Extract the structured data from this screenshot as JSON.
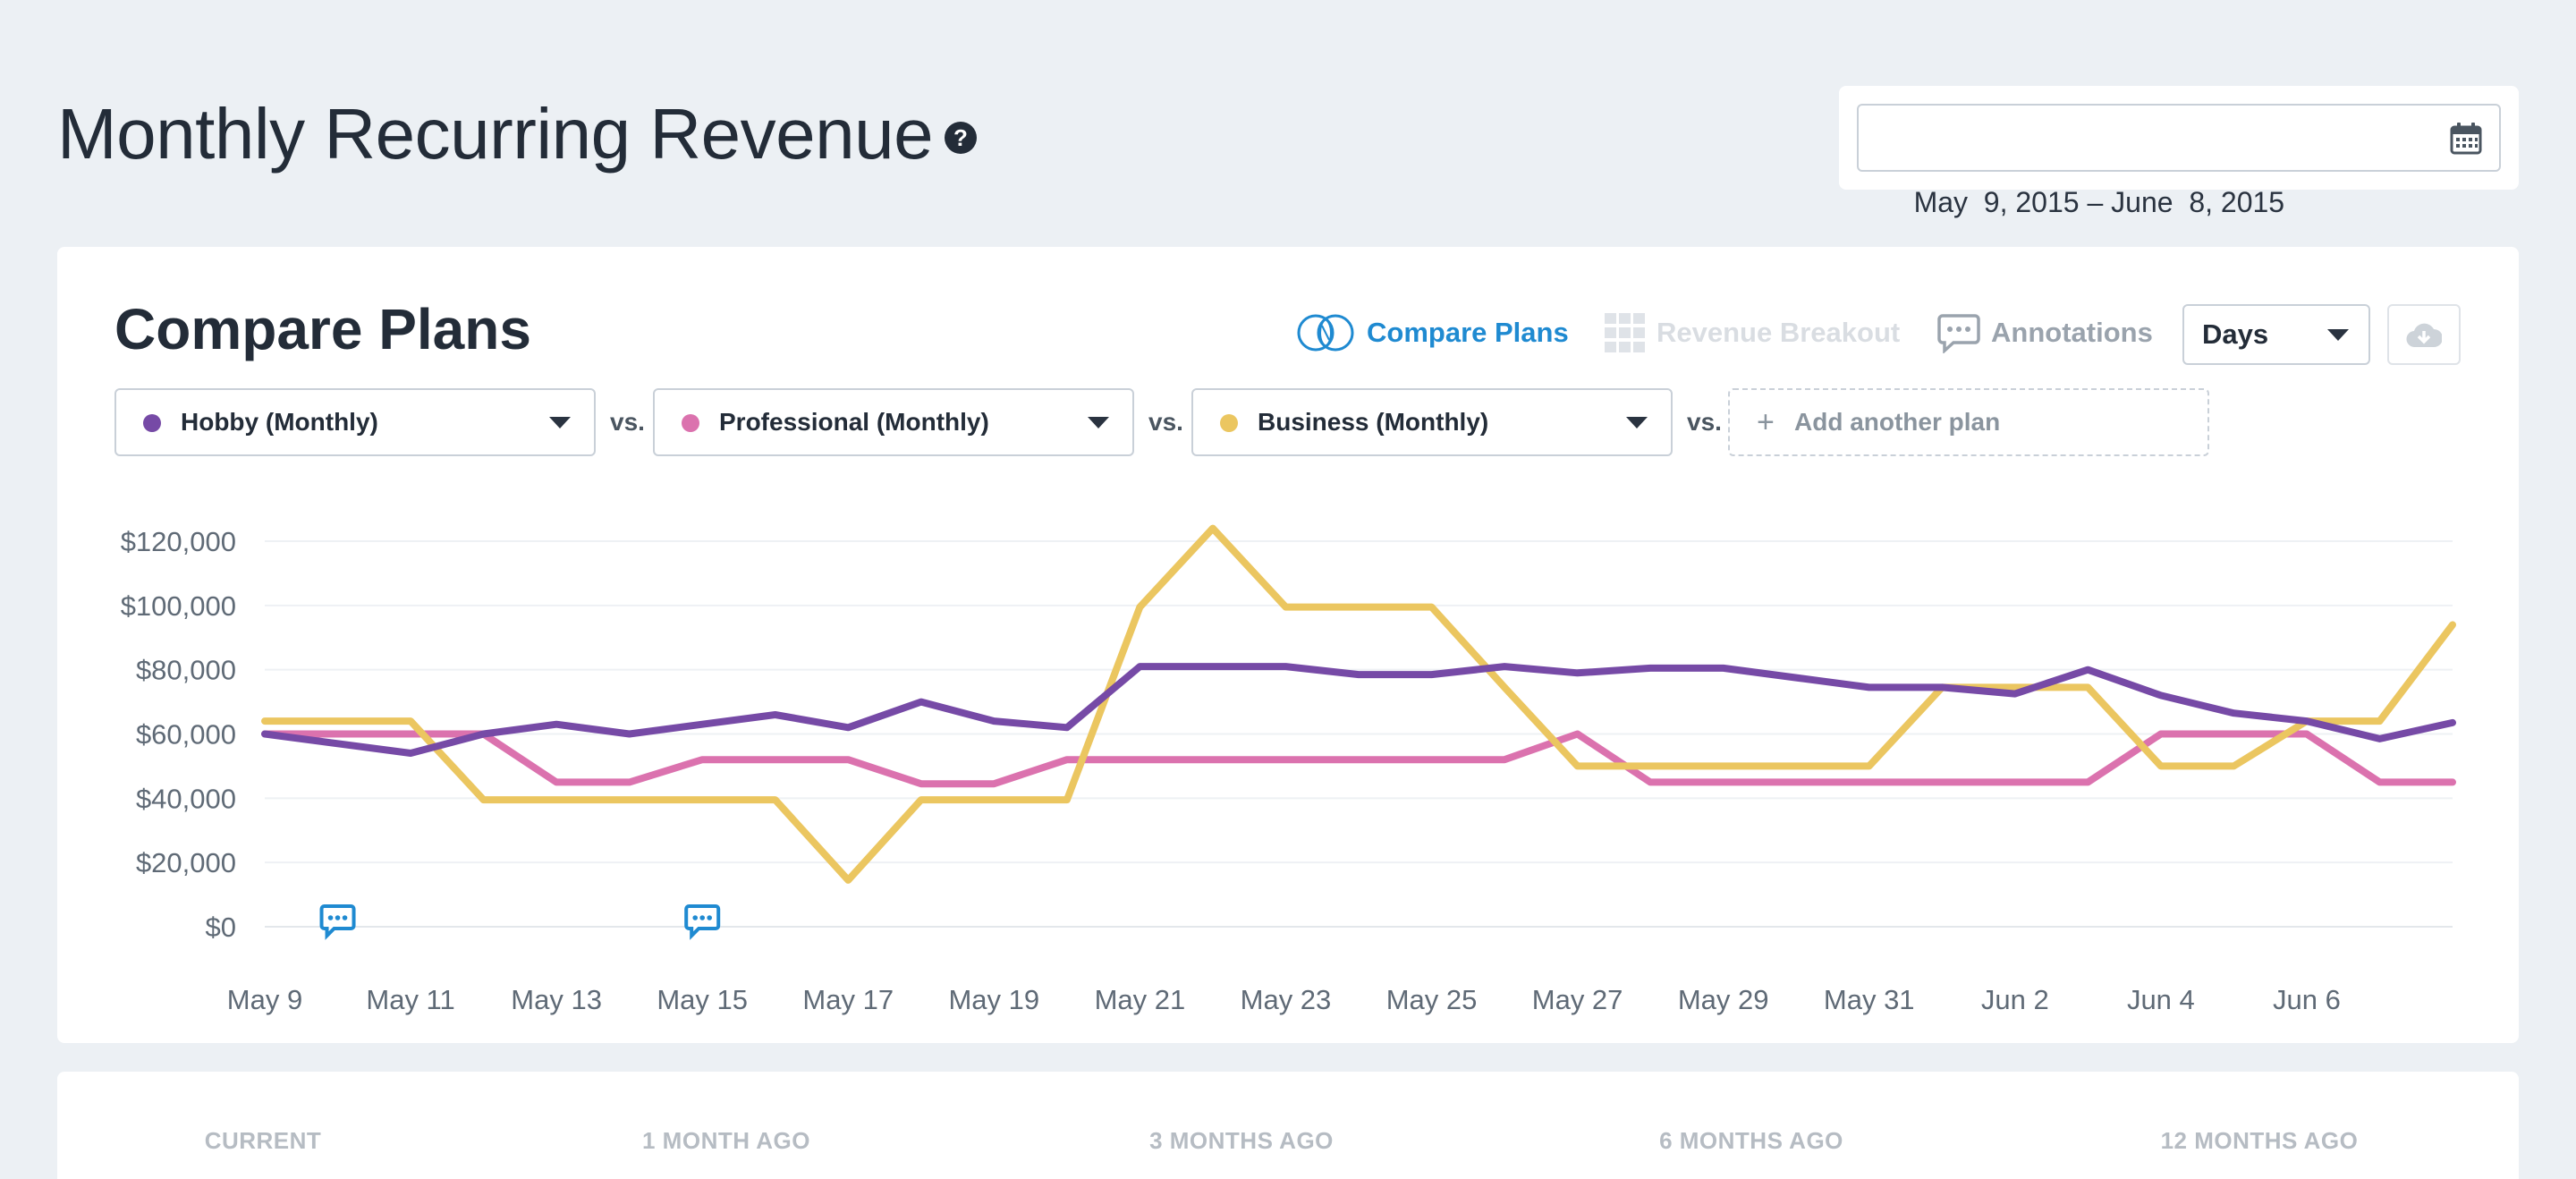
{
  "header": {
    "title": "Monthly Recurring Revenue",
    "help_glyph": "?",
    "date_range": "May  9, 2015 – June  8, 2015"
  },
  "card": {
    "title": "Compare Plans",
    "toolbar": {
      "compare_plans": "Compare Plans",
      "revenue_breakout": "Revenue Breakout",
      "annotations": "Annotations",
      "interval": "Days"
    },
    "plans": [
      {
        "label": "Hobby (Monthly)",
        "color": "#764aa6"
      },
      {
        "label": "Professional (Monthly)",
        "color": "#db72ae"
      },
      {
        "label": "Business (Monthly)",
        "color": "#ebc660"
      }
    ],
    "vs_label": "vs.",
    "add_plan": "Add another plan",
    "icons": [
      "venn-circles-icon",
      "grid-icon",
      "chat-bubble-icon",
      "cloud-download-icon",
      "calendar-icon",
      "help-icon"
    ]
  },
  "chart_data": {
    "type": "line",
    "title": "",
    "xlabel": "",
    "ylabel": "",
    "ylim": [
      0,
      120000
    ],
    "yticks": [
      "$0",
      "$20,000",
      "$40,000",
      "$60,000",
      "$80,000",
      "$100,000",
      "$120,000"
    ],
    "xtick_labels": [
      "May 9",
      "May 11",
      "May 13",
      "May 15",
      "May 17",
      "May 19",
      "May 21",
      "May 23",
      "May 25",
      "May 27",
      "May 29",
      "May 31",
      "Jun 2",
      "Jun 4",
      "Jun 6"
    ],
    "x": [
      "May 9",
      "May 10",
      "May 11",
      "May 12",
      "May 13",
      "May 14",
      "May 15",
      "May 16",
      "May 17",
      "May 18",
      "May 19",
      "May 20",
      "May 21",
      "May 22",
      "May 23",
      "May 24",
      "May 25",
      "May 26",
      "May 27",
      "May 28",
      "May 29",
      "May 30",
      "May 31",
      "Jun 1",
      "Jun 2",
      "Jun 3",
      "Jun 4",
      "Jun 5",
      "Jun 6",
      "Jun 7",
      "Jun 8"
    ],
    "series": [
      {
        "name": "Hobby (Monthly)",
        "color": "#764aa6",
        "values": [
          60000,
          57000,
          54000,
          60000,
          63000,
          60000,
          63000,
          66000,
          62000,
          70000,
          64000,
          62000,
          81000,
          81000,
          81000,
          78500,
          78500,
          81000,
          79000,
          80500,
          80500,
          77500,
          74500,
          74500,
          72500,
          80000,
          72000,
          66500,
          64000,
          58500,
          63500
        ]
      },
      {
        "name": "Professional (Monthly)",
        "color": "#db72ae",
        "values": [
          60000,
          60000,
          60000,
          60000,
          45000,
          45000,
          52000,
          52000,
          52000,
          44500,
          44500,
          52000,
          52000,
          52000,
          52000,
          52000,
          52000,
          52000,
          60000,
          45000,
          45000,
          45000,
          45000,
          45000,
          45000,
          45000,
          60000,
          60000,
          60000,
          45000,
          45000
        ]
      },
      {
        "name": "Business (Monthly)",
        "color": "#ebc660",
        "values": [
          64000,
          64000,
          64000,
          39500,
          39500,
          39500,
          39500,
          39500,
          14500,
          39500,
          39500,
          39500,
          99500,
          124000,
          99500,
          99500,
          99500,
          74500,
          50000,
          50000,
          50000,
          50000,
          50000,
          74500,
          74500,
          74500,
          50000,
          50000,
          64000,
          64000,
          94000
        ]
      }
    ],
    "annotation_markers": [
      "May 10",
      "May 15"
    ]
  },
  "stats": [
    {
      "label": "CURRENT"
    },
    {
      "label": "1 MONTH AGO"
    },
    {
      "label": "3 MONTHS AGO"
    },
    {
      "label": "6 MONTHS AGO"
    },
    {
      "label": "12 MONTHS AGO"
    }
  ]
}
